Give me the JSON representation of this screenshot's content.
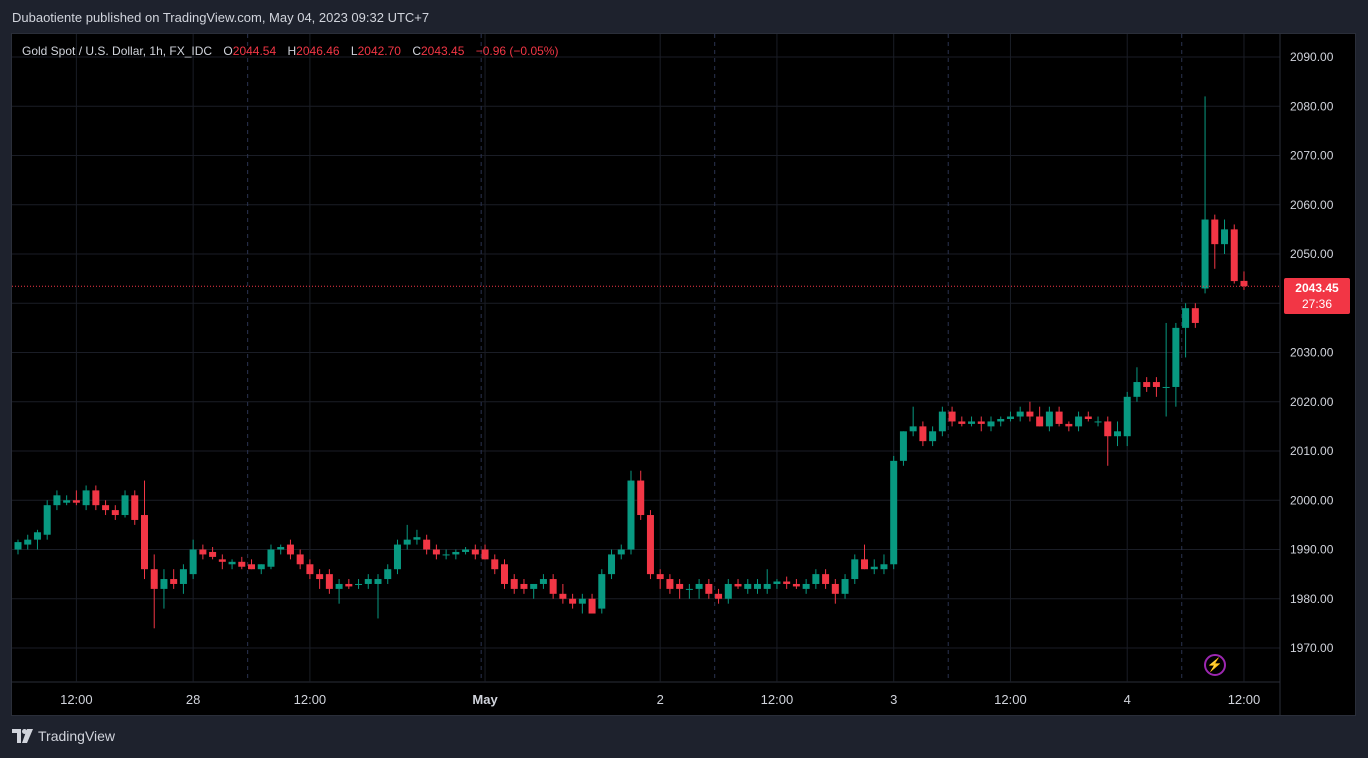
{
  "header": {
    "publish_text": "Dubaotiente published on TradingView.com, May 04, 2023 09:32 UTC+7"
  },
  "legend": {
    "symbol": "Gold Spot / U.S. Dollar, 1h, FX_IDC",
    "open_label": "O",
    "open": "2044.54",
    "high_label": "H",
    "high": "2046.46",
    "low_label": "L",
    "low": "2042.70",
    "close_label": "C",
    "close": "2043.45",
    "change": "−0.96 (−0.05%)"
  },
  "last_price": {
    "price": "2043.45",
    "countdown": "27:36"
  },
  "footer": {
    "brand": "TradingView"
  },
  "colors": {
    "up": "#089981",
    "down": "#f23645",
    "grid": "#1a1d26",
    "session": "#2a3350",
    "axis_text": "#d1d4dc",
    "price_line": "#f23645"
  },
  "chart_data": {
    "type": "candlestick",
    "title": "Gold Spot / U.S. Dollar, 1h, FX_IDC",
    "y_axis": {
      "ticks": [
        "1970.00",
        "1980.00",
        "1990.00",
        "2000.00",
        "2010.00",
        "2020.00",
        "2030.00",
        "2040.00",
        "2050.00",
        "2060.00",
        "2070.00",
        "2080.00",
        "2090.00"
      ],
      "range": [
        1964,
        2096
      ]
    },
    "x_axis": {
      "ticks": [
        {
          "label": "12:00",
          "index": 6
        },
        {
          "label": "28",
          "index": 18
        },
        {
          "label": "12:00",
          "index": 30
        },
        {
          "label": "May",
          "index": 48,
          "bold": true
        },
        {
          "label": "2",
          "index": 66
        },
        {
          "label": "12:00",
          "index": 78
        },
        {
          "label": "3",
          "index": 90
        },
        {
          "label": "12:00",
          "index": 102
        },
        {
          "label": "4",
          "index": 114
        },
        {
          "label": "12:00",
          "index": 126
        }
      ]
    },
    "session_breaks": [
      24,
      48,
      72,
      96,
      120
    ],
    "grid": true,
    "ohlc": [
      [
        1990.0,
        1992.0,
        1989.0,
        1991.5
      ],
      [
        1991.0,
        1993.0,
        1990.0,
        1992.0
      ],
      [
        1992.0,
        1994.0,
        1990.0,
        1993.5
      ],
      [
        1993.0,
        2000.0,
        1992.0,
        1999.0
      ],
      [
        1999.0,
        2002.0,
        1998.0,
        2001.0
      ],
      [
        1999.5,
        2001.0,
        1999.0,
        2000.0
      ],
      [
        2000.0,
        2002.0,
        1999.0,
        1999.5
      ],
      [
        1999.0,
        2003.0,
        1998.0,
        2002.0
      ],
      [
        2002.0,
        2003.0,
        1998.0,
        1999.0
      ],
      [
        1999.0,
        2000.0,
        1997.0,
        1998.0
      ],
      [
        1998.0,
        1999.0,
        1996.0,
        1997.0
      ],
      [
        1997.0,
        2002.0,
        1996.5,
        2001.0
      ],
      [
        2001.0,
        2002.0,
        1995.0,
        1996.0
      ],
      [
        1997.0,
        2004.0,
        1984.0,
        1986.0
      ],
      [
        1986.0,
        1989.0,
        1974.0,
        1982.0
      ],
      [
        1982.0,
        1986.0,
        1978.0,
        1984.0
      ],
      [
        1984.0,
        1986.0,
        1982.0,
        1983.0
      ],
      [
        1983.0,
        1987.0,
        1981.0,
        1986.0
      ],
      [
        1985.0,
        1992.0,
        1984.0,
        1990.0
      ],
      [
        1990.0,
        1991.0,
        1988.0,
        1989.0
      ],
      [
        1989.5,
        1990.5,
        1988.0,
        1988.5
      ],
      [
        1988.0,
        1989.0,
        1986.0,
        1987.5
      ],
      [
        1987.0,
        1988.0,
        1986.0,
        1987.5
      ],
      [
        1987.5,
        1988.5,
        1986.0,
        1986.5
      ],
      [
        1987.0,
        1988.0,
        1986.0,
        1986.0
      ],
      [
        1986.0,
        1987.0,
        1985.0,
        1987.0
      ],
      [
        1986.5,
        1991.0,
        1986.0,
        1990.0
      ],
      [
        1990.0,
        1991.0,
        1989.0,
        1990.5
      ],
      [
        1991.0,
        1992.0,
        1988.0,
        1989.0
      ],
      [
        1989.0,
        1990.0,
        1986.0,
        1987.0
      ],
      [
        1987.0,
        1988.0,
        1984.0,
        1985.0
      ],
      [
        1985.0,
        1986.0,
        1982.0,
        1984.0
      ],
      [
        1985.0,
        1986.0,
        1981.0,
        1982.0
      ],
      [
        1982.0,
        1984.0,
        1979.0,
        1983.0
      ],
      [
        1983.0,
        1984.0,
        1982.0,
        1982.5
      ],
      [
        1983.0,
        1984.0,
        1982.0,
        1983.0
      ],
      [
        1983.0,
        1985.0,
        1982.0,
        1984.0
      ],
      [
        1983.0,
        1985.0,
        1976.0,
        1984.0
      ],
      [
        1984.0,
        1987.0,
        1983.0,
        1986.0
      ],
      [
        1986.0,
        1992.0,
        1985.0,
        1991.0
      ],
      [
        1991.0,
        1995.0,
        1990.0,
        1992.0
      ],
      [
        1992.0,
        1994.0,
        1991.0,
        1992.5
      ],
      [
        1992.0,
        1993.0,
        1989.0,
        1990.0
      ],
      [
        1990.0,
        1991.0,
        1988.0,
        1989.0
      ],
      [
        1989.0,
        1990.0,
        1988.0,
        1989.0
      ],
      [
        1989.0,
        1990.0,
        1988.0,
        1989.5
      ],
      [
        1989.5,
        1990.5,
        1989.0,
        1990.0
      ],
      [
        1990.0,
        1991.0,
        1988.0,
        1989.0
      ],
      [
        1990.0,
        1991.0,
        1988.0,
        1988.0
      ],
      [
        1988.0,
        1989.0,
        1985.0,
        1986.0
      ],
      [
        1987.0,
        1988.0,
        1982.0,
        1983.0
      ],
      [
        1984.0,
        1985.0,
        1981.0,
        1982.0
      ],
      [
        1983.0,
        1984.0,
        1981.0,
        1982.0
      ],
      [
        1982.0,
        1983.0,
        1980.0,
        1983.0
      ],
      [
        1983.0,
        1985.0,
        1982.0,
        1984.0
      ],
      [
        1984.0,
        1985.0,
        1980.0,
        1981.0
      ],
      [
        1981.0,
        1983.0,
        1979.0,
        1980.0
      ],
      [
        1980.0,
        1981.0,
        1978.0,
        1979.0
      ],
      [
        1979.0,
        1981.0,
        1977.0,
        1980.0
      ],
      [
        1980.0,
        1981.0,
        1977.0,
        1977.0
      ],
      [
        1978.0,
        1986.0,
        1977.0,
        1985.0
      ],
      [
        1985.0,
        1990.0,
        1984.0,
        1989.0
      ],
      [
        1989.0,
        1991.0,
        1988.0,
        1990.0
      ],
      [
        1990.0,
        2006.0,
        1989.0,
        2004.0
      ],
      [
        2004.0,
        2006.0,
        1996.0,
        1997.0
      ],
      [
        1997.0,
        1998.0,
        1984.0,
        1985.0
      ],
      [
        1985.0,
        1986.0,
        1982.0,
        1984.0
      ],
      [
        1984.0,
        1985.0,
        1981.0,
        1982.0
      ],
      [
        1983.0,
        1984.0,
        1980.0,
        1982.0
      ],
      [
        1982.0,
        1983.0,
        1980.0,
        1982.0
      ],
      [
        1982.0,
        1984.0,
        1980.0,
        1983.0
      ],
      [
        1983.0,
        1984.0,
        1980.0,
        1981.0
      ],
      [
        1981.0,
        1982.0,
        1979.0,
        1980.0
      ],
      [
        1980.0,
        1984.0,
        1979.0,
        1983.0
      ],
      [
        1983.0,
        1984.0,
        1982.0,
        1982.5
      ],
      [
        1982.0,
        1984.0,
        1981.0,
        1983.0
      ],
      [
        1982.0,
        1984.0,
        1981.0,
        1983.0
      ],
      [
        1982.0,
        1986.0,
        1981.0,
        1983.0
      ],
      [
        1983.0,
        1984.0,
        1982.0,
        1983.5
      ],
      [
        1983.5,
        1984.5,
        1982.0,
        1983.0
      ],
      [
        1983.0,
        1984.0,
        1982.0,
        1982.5
      ],
      [
        1982.0,
        1984.0,
        1981.0,
        1983.0
      ],
      [
        1983.0,
        1986.0,
        1982.0,
        1985.0
      ],
      [
        1985.0,
        1986.0,
        1982.0,
        1983.0
      ],
      [
        1983.0,
        1984.0,
        1979.0,
        1981.0
      ],
      [
        1981.0,
        1985.0,
        1980.0,
        1984.0
      ],
      [
        1984.0,
        1989.0,
        1983.0,
        1988.0
      ],
      [
        1988.0,
        1991.0,
        1986.0,
        1986.0
      ],
      [
        1986.0,
        1988.0,
        1985.0,
        1986.5
      ],
      [
        1986.0,
        1989.0,
        1985.0,
        1987.0
      ],
      [
        1987.0,
        2009.0,
        1986.0,
        2008.0
      ],
      [
        2008.0,
        2014.0,
        2007.0,
        2014.0
      ],
      [
        2014.0,
        2019.0,
        2013.0,
        2015.0
      ],
      [
        2015.0,
        2016.0,
        2011.0,
        2012.0
      ],
      [
        2012.0,
        2015.0,
        2011.0,
        2014.0
      ],
      [
        2014.0,
        2019.0,
        2013.0,
        2018.0
      ],
      [
        2018.0,
        2019.0,
        2015.0,
        2016.0
      ],
      [
        2016.0,
        2017.0,
        2015.0,
        2015.5
      ],
      [
        2015.5,
        2017.0,
        2015.0,
        2016.0
      ],
      [
        2016.0,
        2017.0,
        2014.0,
        2015.5
      ],
      [
        2015.0,
        2017.0,
        2014.0,
        2016.0
      ],
      [
        2016.0,
        2017.0,
        2015.0,
        2016.5
      ],
      [
        2016.5,
        2018.0,
        2016.0,
        2017.0
      ],
      [
        2017.0,
        2019.0,
        2016.0,
        2018.0
      ],
      [
        2018.0,
        2020.0,
        2016.0,
        2017.0
      ],
      [
        2017.0,
        2019.0,
        2015.0,
        2015.0
      ],
      [
        2015.0,
        2019.0,
        2014.0,
        2018.0
      ],
      [
        2018.0,
        2019.0,
        2015.0,
        2015.5
      ],
      [
        2015.5,
        2016.0,
        2014.0,
        2015.0
      ],
      [
        2015.0,
        2018.0,
        2014.0,
        2017.0
      ],
      [
        2017.0,
        2018.0,
        2016.0,
        2016.5
      ],
      [
        2016.0,
        2017.0,
        2015.0,
        2016.0
      ],
      [
        2016.0,
        2017.0,
        2007.0,
        2013.0
      ],
      [
        2013.0,
        2016.0,
        2011.0,
        2014.0
      ],
      [
        2013.0,
        2022.0,
        2011.0,
        2021.0
      ],
      [
        2021.0,
        2027.0,
        2020.0,
        2024.0
      ],
      [
        2024.0,
        2025.0,
        2022.0,
        2023.0
      ],
      [
        2024.0,
        2025.0,
        2021.0,
        2023.0
      ],
      [
        2023.0,
        2036.0,
        2017.0,
        2023.0
      ],
      [
        2023.0,
        2036.0,
        2019.0,
        2035.0
      ],
      [
        2035.0,
        2040.0,
        2029.0,
        2039.0
      ],
      [
        2039.0,
        2040.0,
        2035.0,
        2036.0
      ],
      [
        2043.0,
        2082.0,
        2042.0,
        2057.0
      ],
      [
        2057.0,
        2058.0,
        2047.0,
        2052.0
      ],
      [
        2052.0,
        2057.0,
        2050.0,
        2055.0
      ],
      [
        2055.0,
        2056.0,
        2044.0,
        2044.5
      ],
      [
        2044.54,
        2046.46,
        2042.7,
        2043.45
      ]
    ]
  }
}
